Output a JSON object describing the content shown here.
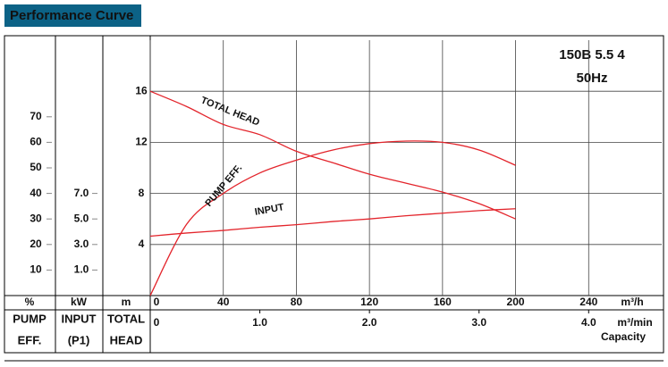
{
  "header": {
    "title": "Performance Curve"
  },
  "model": {
    "name": "150B  5.5 4",
    "frequency": "50Hz"
  },
  "chart_data": {
    "type": "line",
    "x": [
      0,
      20,
      40,
      60,
      80,
      100,
      120,
      140,
      160,
      180,
      200
    ],
    "xlim": [
      0,
      280
    ],
    "xticks": [
      0,
      40,
      80,
      120,
      160,
      200,
      240
    ],
    "x_unit": "m³/h",
    "x2lim": [
      0,
      4.6667
    ],
    "x2ticks": [
      0,
      {
        "value": 1,
        "label": "1.0"
      },
      {
        "value": 2,
        "label": "2.0"
      },
      {
        "value": 3,
        "label": "3.0"
      },
      {
        "value": 4,
        "label": "4.0"
      }
    ],
    "x2_unit": "m³/min",
    "x_label": "Capacity",
    "ylim": [
      0,
      20
    ],
    "yticks": [
      4,
      8,
      12,
      16
    ],
    "y_unit": "m",
    "y_label": [
      "TOTAL",
      "HEAD"
    ],
    "y2lim": [
      0,
      100
    ],
    "y2ticks": [
      10,
      20,
      30,
      40,
      50,
      60,
      70
    ],
    "y2_unit": "%",
    "y2_label": [
      "PUMP",
      "EFF."
    ],
    "y3lim": [
      -1,
      19
    ],
    "y3ticks": [
      {
        "value": 1,
        "label": "1.0"
      },
      {
        "value": 3,
        "label": "3.0"
      },
      {
        "value": 5,
        "label": "5.0"
      },
      {
        "value": 7,
        "label": "7.0"
      }
    ],
    "y3_unit": "kW",
    "y3_label": [
      "INPUT",
      "(P1)"
    ],
    "grid": true,
    "series": [
      {
        "name": "TOTAL HEAD",
        "color": "#e3242b",
        "axis": "y",
        "values": [
          16,
          14.8,
          13.4,
          12.6,
          11.3,
          10.4,
          9.5,
          8.8,
          8.1,
          7.2,
          6.0
        ]
      },
      {
        "name": "PUMP EFF.",
        "color": "#e3242b",
        "axis": "y2",
        "values": [
          0,
          28,
          40,
          48,
          53,
          57,
          59.5,
          60.5,
          60,
          57,
          51
        ]
      },
      {
        "name": "INPUT",
        "color": "#e3242b",
        "axis": "y3",
        "values": [
          3.65,
          3.9,
          4.1,
          4.35,
          4.55,
          4.8,
          5.0,
          5.25,
          5.45,
          5.65,
          5.8
        ]
      }
    ]
  }
}
